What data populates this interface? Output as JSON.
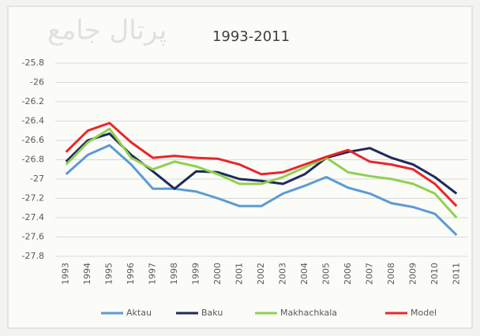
{
  "chart_data": {
    "type": "line",
    "title": "1993-2011",
    "watermark": "پرتال جامع",
    "categories": [
      "1993",
      "1994",
      "1995",
      "1996",
      "1997",
      "1998",
      "1999",
      "2000",
      "2001",
      "2002",
      "2003",
      "2004",
      "2005",
      "2006",
      "2007",
      "2008",
      "2009",
      "2010",
      "2011"
    ],
    "series": [
      {
        "name": "Aktau",
        "color": "#5b9bd5",
        "values": [
          -26.95,
          -26.75,
          -26.65,
          -26.85,
          -27.1,
          -27.1,
          -27.13,
          -27.2,
          -27.28,
          -27.28,
          -27.15,
          -27.07,
          -26.98,
          -27.09,
          -27.15,
          -27.25,
          -27.29,
          -27.36,
          -27.58
        ]
      },
      {
        "name": "Baku",
        "color": "#1f2a5c",
        "values": [
          -26.82,
          -26.6,
          -26.53,
          -26.75,
          -26.92,
          -27.1,
          -26.92,
          -26.93,
          -27.0,
          -27.02,
          -27.05,
          -26.95,
          -26.78,
          -26.72,
          -26.68,
          -26.78,
          -26.85,
          -26.98,
          -27.15
        ]
      },
      {
        "name": "Makhachkala",
        "color": "#8fd14f",
        "values": [
          -26.85,
          -26.62,
          -26.48,
          -26.78,
          -26.9,
          -26.82,
          -26.87,
          -26.95,
          -27.05,
          -27.05,
          -26.98,
          -26.88,
          -26.78,
          -26.93,
          -26.97,
          -27.0,
          -27.05,
          -27.15,
          -27.4
        ]
      },
      {
        "name": "Model",
        "color": "#e8272a",
        "values": [
          -26.72,
          -26.5,
          -26.42,
          -26.62,
          -26.78,
          -26.76,
          -26.78,
          -26.79,
          -26.85,
          -26.95,
          -26.93,
          -26.85,
          -26.77,
          -26.7,
          -26.82,
          -26.85,
          -26.9,
          -27.05,
          -27.28
        ]
      }
    ],
    "ylim": [
      -27.8,
      -25.8
    ],
    "yticks": [
      -25.8,
      -26,
      -26.2,
      -26.4,
      -26.6,
      -26.8,
      -27,
      -27.2,
      -27.4,
      -27.6,
      -27.8
    ],
    "grid": true,
    "legend": "bottom"
  }
}
